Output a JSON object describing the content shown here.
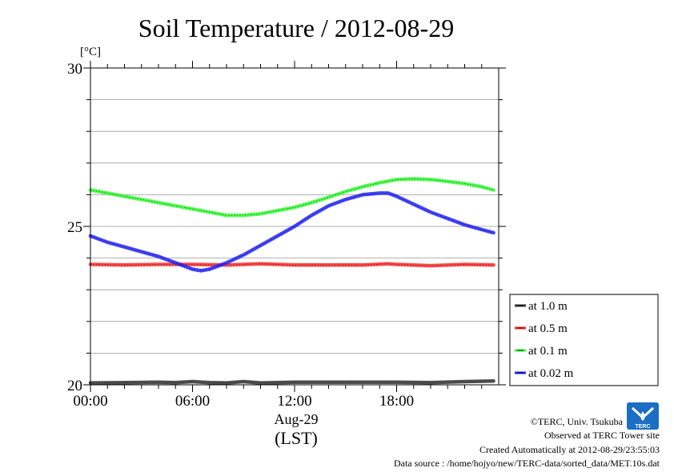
{
  "chart_data": {
    "type": "line",
    "title": "Soil Temperature / 2012-08-29",
    "ylabel": "[°C]",
    "xlabel_date": "Aug-29",
    "xlabel_unit": "(LST)",
    "ylim": [
      20,
      30
    ],
    "xlim": [
      0,
      24
    ],
    "y_ticks": [
      20,
      25,
      30
    ],
    "y_tick_labels": [
      "20",
      "25",
      "30"
    ],
    "y_minor_step": 1,
    "x_ticks": [
      0,
      6,
      12,
      18
    ],
    "x_tick_labels": [
      "00:00",
      "06:00",
      "12:00",
      "18:00"
    ],
    "x_minor_step": 1,
    "grid": true,
    "legend_position": "right",
    "series": [
      {
        "name": "at 1.0 m",
        "color": "#333333",
        "x": [
          0,
          2,
          4,
          5,
          6,
          7,
          8,
          9,
          10,
          12,
          14,
          16,
          18,
          20,
          22,
          23.7
        ],
        "y": [
          20.06,
          20.07,
          20.08,
          20.07,
          20.1,
          20.07,
          20.06,
          20.1,
          20.06,
          20.08,
          20.08,
          20.08,
          20.08,
          20.07,
          20.1,
          20.12
        ]
      },
      {
        "name": "at 0.5 m",
        "color": "#ff2a2a",
        "x": [
          0,
          2,
          4,
          6,
          8,
          10,
          12,
          14,
          16,
          17.5,
          18,
          20,
          22,
          23.7
        ],
        "y": [
          23.8,
          23.78,
          23.8,
          23.8,
          23.78,
          23.82,
          23.78,
          23.78,
          23.78,
          23.82,
          23.8,
          23.76,
          23.8,
          23.78
        ]
      },
      {
        "name": "at 0.1 m",
        "color": "#33ff33",
        "x": [
          0,
          1,
          2,
          3,
          4,
          5,
          6,
          7,
          8,
          9,
          10,
          11,
          12,
          13,
          14,
          15,
          16,
          17,
          18,
          19,
          20,
          21,
          22,
          23,
          23.7
        ],
        "y": [
          26.15,
          26.05,
          25.95,
          25.85,
          25.75,
          25.65,
          25.55,
          25.45,
          25.35,
          25.35,
          25.4,
          25.5,
          25.6,
          25.75,
          25.92,
          26.1,
          26.25,
          26.38,
          26.48,
          26.5,
          26.48,
          26.42,
          26.35,
          26.25,
          26.15
        ]
      },
      {
        "name": "at 0.02 m",
        "color": "#2222ff",
        "x": [
          0,
          1,
          2,
          3,
          4,
          5,
          6,
          6.5,
          7,
          8,
          9,
          10,
          11,
          12,
          13,
          14,
          15,
          16,
          17,
          17.5,
          18,
          19,
          20,
          21,
          22,
          23,
          23.7
        ],
        "y": [
          24.7,
          24.5,
          24.35,
          24.2,
          24.05,
          23.85,
          23.65,
          23.6,
          23.65,
          23.85,
          24.1,
          24.4,
          24.7,
          25.0,
          25.35,
          25.65,
          25.85,
          26.0,
          26.05,
          26.05,
          25.95,
          25.7,
          25.45,
          25.25,
          25.05,
          24.9,
          24.8
        ]
      }
    ]
  },
  "credits": {
    "copyright": "©TERC, Univ. Tsukuba",
    "site": "Observed at TERC Tower site",
    "created": "Created Automatically at 2012-08-29/23:55:03",
    "source": "Data source : /home/hojyo/new/TERC-data/sorted_data/MET.10s.dat",
    "logo_text": "TERC"
  }
}
